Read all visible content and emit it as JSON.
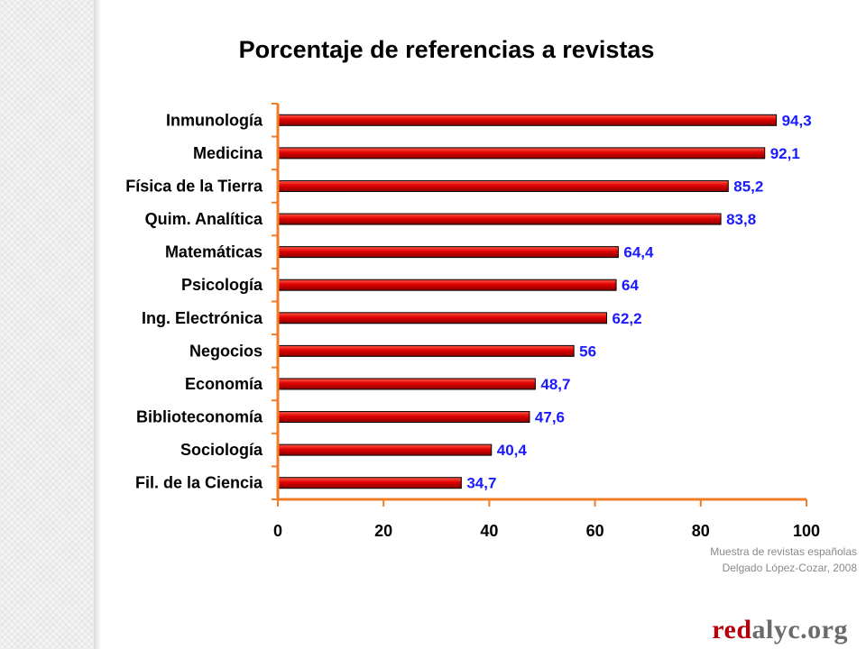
{
  "title": "Porcentaje de referencias a revistas",
  "chart_data": {
    "type": "bar",
    "orientation": "horizontal",
    "title": "Porcentaje de referencias a revistas",
    "categories": [
      "Inmunología",
      "Medicina",
      "Física de la Tierra",
      "Quim. Analítica",
      "Matemáticas",
      "Psicología",
      "Ing. Electrónica",
      "Negocios",
      "Economía",
      "Biblioteconomía",
      "Sociología",
      "Fil. de la Ciencia"
    ],
    "values": [
      94.3,
      92.1,
      85.2,
      83.8,
      64.4,
      64,
      62.2,
      56,
      48.7,
      47.6,
      40.4,
      34.7
    ],
    "value_labels": [
      "94,3",
      "92,1",
      "85,2",
      "83,8",
      "64,4",
      "64",
      "62,2",
      "56",
      "48,7",
      "47,6",
      "40,4",
      "34,7"
    ],
    "xlim": [
      0,
      100
    ],
    "xticks": [
      0,
      20,
      40,
      60,
      80,
      100
    ],
    "xlabel": "",
    "ylabel": "",
    "grid": false,
    "legend": "none",
    "colors": {
      "bar": "#e00000",
      "bar_edge": "#000000",
      "value_label": "#1a1aff",
      "axis": "#ef7d2a"
    }
  },
  "source": {
    "line1": "Muestra de revistas españolas",
    "line2": "Delgado López-Cozar, 2008"
  },
  "brand": {
    "part1": "red",
    "part2": "alyc.org"
  }
}
